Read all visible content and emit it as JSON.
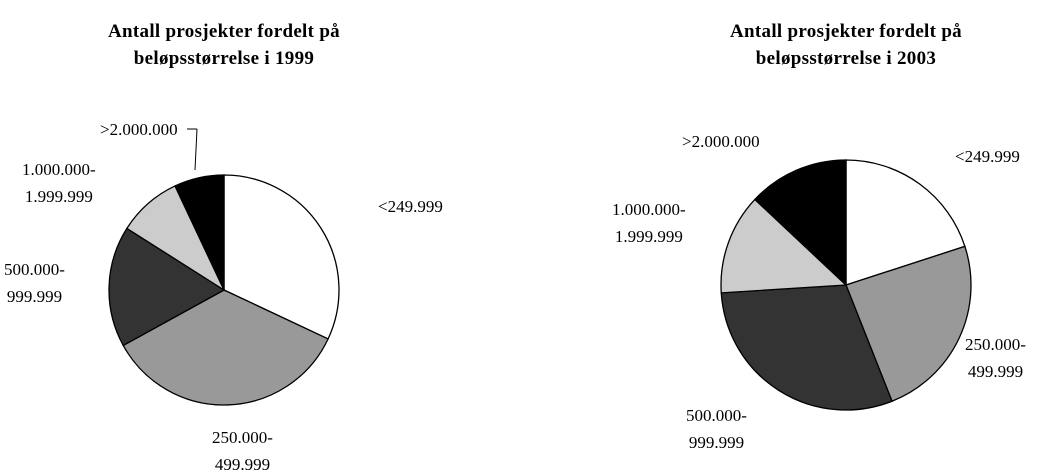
{
  "chart_data": [
    {
      "type": "pie",
      "title": "Antall prosjekter fordelt på\nbeløpsstørrelse i 1999",
      "categories": [
        "<249.999",
        "250.000-\n499.999",
        "500.000-\n999.999",
        "1.000.000-\n1.999.999",
        ">2.000.000"
      ],
      "values": [
        32,
        35,
        17,
        9,
        7
      ],
      "colors": [
        "#ffffff",
        "#999999",
        "#333333",
        "#cccccc",
        "#000000"
      ]
    },
    {
      "type": "pie",
      "title": "Antall prosjekter fordelt på\nbeløpsstørrelse i 2003",
      "categories": [
        "<249.999",
        "250.000-\n499.999",
        "500.000-\n999.999",
        "1.000.000-\n1.999.999",
        ">2.000.000"
      ],
      "values": [
        20,
        24,
        30,
        13,
        13
      ],
      "colors": [
        "#ffffff",
        "#999999",
        "#333333",
        "#cccccc",
        "#000000"
      ]
    }
  ]
}
